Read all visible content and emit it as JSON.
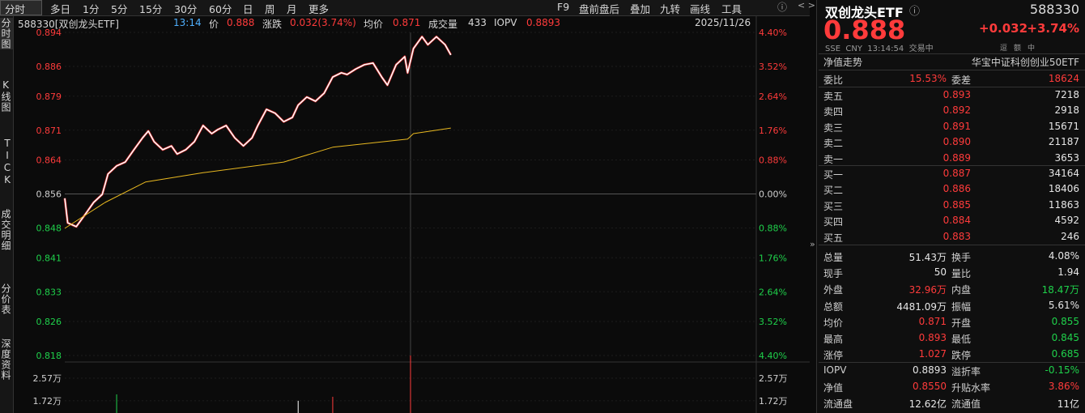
{
  "toolbar": {
    "tabs": [
      "分时",
      "多日",
      "1分",
      "5分",
      "15分",
      "30分",
      "60分",
      "日",
      "周",
      "月",
      "更多"
    ],
    "right": [
      "F9",
      "盘前盘后",
      "叠加",
      "九转",
      "画线",
      "工具"
    ]
  },
  "side_tabs": [
    "分时图",
    "K线图",
    "TICK",
    "成交明细",
    "分价表",
    "深度资料"
  ],
  "info_bar": {
    "name": "588330[双创龙头ETF]",
    "time": "13:14",
    "price_label": "价",
    "price": "0.888",
    "change_label": "涨跌",
    "change": "0.032(3.74%)",
    "avg_label": "均价",
    "avg": "0.871",
    "volume_label": "成交量",
    "volume": "433",
    "iopv_label": "IOPV",
    "iopv": "0.8893",
    "date": "2025/11/26"
  },
  "chart": {
    "xlim": [
      0,
      240
    ],
    "ylim": [
      0.818,
      0.894
    ],
    "yticks": [
      0.894,
      0.886,
      0.879,
      0.871,
      0.864,
      0.856,
      0.848,
      0.841,
      0.833,
      0.826,
      0.818
    ],
    "pct_labels": [
      "4.40%",
      "3.52%",
      "2.64%",
      "1.76%",
      "0.88%",
      "0.00%",
      "0.88%",
      "1.76%",
      "2.64%",
      "3.52%",
      "4.40%"
    ],
    "tick_colors": [
      "#ff3b3b",
      "#ff3b3b",
      "#ff3b3b",
      "#ff3b3b",
      "#ff3b3b",
      "#d0d0d0",
      "#1fd14b",
      "#1fd14b",
      "#1fd14b",
      "#1fd14b",
      "#1fd14b"
    ],
    "price": {
      "color": "#ffffff",
      "x": [
        0,
        1,
        4,
        7,
        10,
        13,
        15,
        18,
        21,
        24,
        27,
        29,
        31,
        34,
        37,
        39,
        42,
        45,
        48,
        51,
        53,
        56,
        59,
        62,
        65,
        67,
        70,
        73,
        76,
        79,
        81,
        84,
        87,
        90,
        93,
        96,
        98,
        101,
        104,
        107,
        110,
        112,
        115,
        118,
        119,
        121,
        124,
        126,
        129,
        132,
        134
      ],
      "values": [
        0.855,
        0.8492,
        0.8483,
        0.8511,
        0.854,
        0.8559,
        0.8607,
        0.8626,
        0.8635,
        0.8664,
        0.8692,
        0.8708,
        0.8683,
        0.8664,
        0.8673,
        0.8654,
        0.8664,
        0.8683,
        0.8721,
        0.8702,
        0.8711,
        0.8721,
        0.8692,
        0.8673,
        0.8692,
        0.8721,
        0.8759,
        0.875,
        0.873,
        0.874,
        0.8769,
        0.8788,
        0.8778,
        0.8797,
        0.8835,
        0.8845,
        0.8841,
        0.8854,
        0.8864,
        0.8868,
        0.8835,
        0.8816,
        0.8864,
        0.8883,
        0.8845,
        0.8902,
        0.893,
        0.8911,
        0.893,
        0.8911,
        0.8887
      ]
    },
    "avg": {
      "color": "#e8b820",
      "x": [
        0,
        14,
        28,
        48,
        76,
        93,
        119,
        121,
        134
      ],
      "values": [
        0.8479,
        0.854,
        0.8588,
        0.861,
        0.8635,
        0.867,
        0.8689,
        0.8702,
        0.8715
      ]
    },
    "volume": {
      "ylim": [
        12600,
        34200
      ],
      "yticks": [
        {
          "value": 25700,
          "label": "2.57万"
        },
        {
          "value": 17200,
          "label": "1.72万"
        }
      ],
      "bars": [
        {
          "x": 18,
          "value": 19600,
          "color": "#1fd14b"
        },
        {
          "x": 81,
          "value": 17200,
          "color": "#ffffff"
        },
        {
          "x": 93,
          "value": 18700,
          "color": "#ff3b3b"
        },
        {
          "x": 120,
          "value": 34200,
          "color": "#ff3b3b"
        }
      ]
    }
  },
  "panel": {
    "title": "双创龙头ETF",
    "code": "588330",
    "price": "0.888",
    "change": "+0.032",
    "pct": "+3.74%",
    "meta": "SSE  CNY  13:14:54  交易中",
    "icons": [
      "逗",
      "额",
      "中"
    ],
    "nav_label": "净值走势",
    "index_name": "华宝中证科创创业50ETF",
    "ratio": {
      "label": "委比",
      "value": "15.53%",
      "diff_label": "委差",
      "diff": "18624"
    },
    "asks": [
      [
        "卖五",
        "0.893",
        "7218"
      ],
      [
        "卖四",
        "0.892",
        "2918"
      ],
      [
        "卖三",
        "0.891",
        "15671"
      ],
      [
        "卖二",
        "0.890",
        "21187"
      ],
      [
        "卖一",
        "0.889",
        "3653"
      ]
    ],
    "bids": [
      [
        "买一",
        "0.887",
        "34164"
      ],
      [
        "买二",
        "0.886",
        "18406"
      ],
      [
        "买三",
        "0.885",
        "11863"
      ],
      [
        "买四",
        "0.884",
        "4592"
      ],
      [
        "买五",
        "0.883",
        "246"
      ]
    ],
    "stats": [
      [
        {
          "label": "总量",
          "value": "51.43万",
          "color": "white"
        },
        {
          "label": "换手",
          "value": "4.08%",
          "color": "white"
        }
      ],
      [
        {
          "label": "现手",
          "value": "50",
          "color": "white"
        },
        {
          "label": "量比",
          "value": "1.94",
          "color": "white"
        }
      ],
      [
        {
          "label": "外盘",
          "value": "32.96万",
          "color": "red"
        },
        {
          "label": "内盘",
          "value": "18.47万",
          "color": "green"
        }
      ],
      [
        {
          "label": "总额",
          "value": "4481.09万",
          "color": "white"
        },
        {
          "label": "振幅",
          "value": "5.61%",
          "color": "white"
        }
      ],
      [
        {
          "label": "均价",
          "value": "0.871",
          "color": "red"
        },
        {
          "label": "开盘",
          "value": "0.855",
          "color": "green"
        }
      ],
      [
        {
          "label": "最高",
          "value": "0.893",
          "color": "red"
        },
        {
          "label": "最低",
          "value": "0.845",
          "color": "green"
        }
      ],
      [
        {
          "label": "涨停",
          "value": "1.027",
          "color": "red"
        },
        {
          "label": "跌停",
          "value": "0.685",
          "color": "green"
        }
      ],
      [
        {
          "label": "IOPV",
          "value": "0.8893",
          "color": "white"
        },
        {
          "label": "溢折率",
          "value": "-0.15%",
          "color": "green"
        }
      ],
      [
        {
          "label": "净值",
          "value": "0.8550",
          "color": "red"
        },
        {
          "label": "升贴水率",
          "value": "3.86%",
          "color": "red"
        }
      ],
      [
        {
          "label": "流通盘",
          "value": "12.62亿",
          "color": "white"
        },
        {
          "label": "流通值",
          "value": "11亿",
          "color": "white"
        }
      ]
    ]
  }
}
